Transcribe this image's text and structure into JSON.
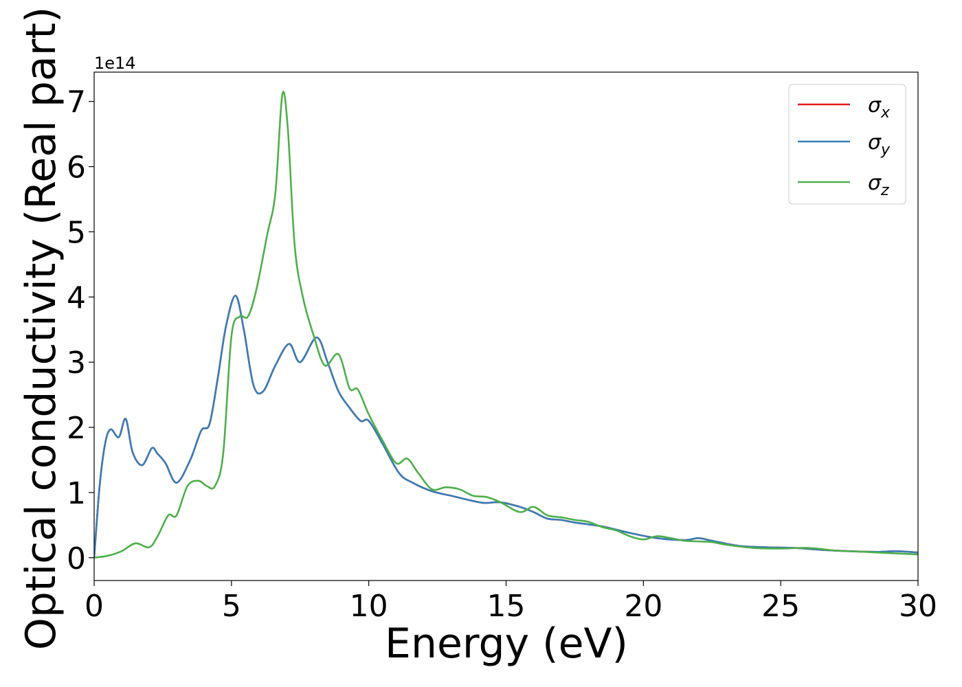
{
  "chart_data": {
    "type": "line",
    "xlabel": "Energy (eV)",
    "ylabel": "Optical conductivity (Real part)",
    "y_offset_label": "1e14",
    "y_multiplier": 100000000000000.0,
    "xlim": [
      0,
      30
    ],
    "ylim": [
      -0.35,
      7.45
    ],
    "xticks": [
      0,
      5,
      10,
      15,
      20,
      25,
      30
    ],
    "yticks": [
      0,
      1,
      2,
      3,
      4,
      5,
      6,
      7
    ],
    "grid": false,
    "legend_position": "top-right",
    "series": [
      {
        "name": "σ",
        "subscript": "x",
        "color": "#e41a1c",
        "x": [
          0,
          0.2,
          0.4,
          0.6,
          0.9,
          1.15,
          1.4,
          1.75,
          2.1,
          2.3,
          2.6,
          3.0,
          3.5,
          3.9,
          4.2,
          4.5,
          4.8,
          5.15,
          5.45,
          5.8,
          6.15,
          6.6,
          7.1,
          7.5,
          8.1,
          8.5,
          8.9,
          9.3,
          9.7,
          10.0,
          10.5,
          11.1,
          11.6,
          12.3,
          13.0,
          13.7,
          14.2,
          14.8,
          15.5,
          16.0,
          16.5,
          17.0,
          17.5,
          18.5,
          19.5,
          20.5,
          21.5,
          22.0,
          22.5,
          23.5,
          24.5,
          25.5,
          26.5,
          27.5,
          28.5,
          29.2,
          30.0
        ],
        "y": [
          0,
          1.1,
          1.75,
          1.97,
          1.85,
          2.13,
          1.62,
          1.42,
          1.68,
          1.6,
          1.45,
          1.15,
          1.5,
          1.95,
          2.05,
          2.75,
          3.55,
          4.02,
          3.5,
          2.65,
          2.55,
          2.95,
          3.28,
          3.0,
          3.38,
          3.0,
          2.55,
          2.3,
          2.1,
          2.1,
          1.75,
          1.3,
          1.15,
          1.02,
          0.95,
          0.88,
          0.84,
          0.85,
          0.78,
          0.7,
          0.6,
          0.58,
          0.54,
          0.48,
          0.38,
          0.3,
          0.27,
          0.3,
          0.26,
          0.18,
          0.16,
          0.15,
          0.12,
          0.1,
          0.09,
          0.1,
          0.08
        ]
      },
      {
        "name": "σ",
        "subscript": "y",
        "color": "#377eb8",
        "x": [
          0,
          0.2,
          0.4,
          0.6,
          0.9,
          1.15,
          1.4,
          1.75,
          2.1,
          2.3,
          2.6,
          3.0,
          3.5,
          3.9,
          4.2,
          4.5,
          4.8,
          5.15,
          5.45,
          5.8,
          6.15,
          6.6,
          7.1,
          7.5,
          8.1,
          8.5,
          8.9,
          9.3,
          9.7,
          10.0,
          10.5,
          11.1,
          11.6,
          12.3,
          13.0,
          13.7,
          14.2,
          14.8,
          15.5,
          16.0,
          16.5,
          17.0,
          17.5,
          18.5,
          19.5,
          20.5,
          21.5,
          22.0,
          22.5,
          23.5,
          24.5,
          25.5,
          26.5,
          27.5,
          28.5,
          29.2,
          30.0
        ],
        "y": [
          0,
          1.1,
          1.75,
          1.97,
          1.85,
          2.13,
          1.62,
          1.42,
          1.68,
          1.6,
          1.45,
          1.15,
          1.5,
          1.95,
          2.05,
          2.75,
          3.55,
          4.02,
          3.5,
          2.65,
          2.55,
          2.95,
          3.28,
          3.0,
          3.38,
          3.0,
          2.55,
          2.3,
          2.1,
          2.1,
          1.75,
          1.3,
          1.15,
          1.02,
          0.95,
          0.88,
          0.84,
          0.85,
          0.78,
          0.7,
          0.6,
          0.58,
          0.54,
          0.48,
          0.38,
          0.3,
          0.27,
          0.3,
          0.26,
          0.18,
          0.16,
          0.15,
          0.12,
          0.1,
          0.09,
          0.1,
          0.08
        ]
      },
      {
        "name": "σ",
        "subscript": "z",
        "color": "#4daf4a",
        "x": [
          0,
          0.5,
          1.0,
          1.5,
          2.0,
          2.3,
          2.7,
          3.0,
          3.4,
          3.8,
          4.1,
          4.4,
          4.7,
          5.0,
          5.3,
          5.6,
          5.9,
          6.3,
          6.6,
          6.85,
          7.05,
          7.3,
          7.6,
          8.0,
          8.4,
          8.9,
          9.3,
          9.6,
          10.0,
          10.5,
          11.0,
          11.4,
          11.8,
          12.3,
          12.8,
          13.3,
          13.8,
          14.3,
          14.8,
          15.5,
          16.0,
          16.5,
          17.0,
          17.5,
          18.0,
          18.5,
          19.0,
          19.5,
          20.0,
          20.5,
          21.0,
          21.5,
          22.0,
          22.5,
          23.0,
          24.0,
          25.0,
          26.0,
          27.0,
          28.0,
          29.0,
          30.0
        ],
        "y": [
          0,
          0.03,
          0.1,
          0.22,
          0.16,
          0.32,
          0.65,
          0.65,
          1.1,
          1.18,
          1.1,
          1.1,
          1.6,
          3.4,
          3.7,
          3.7,
          4.1,
          4.95,
          5.6,
          7.1,
          6.6,
          4.8,
          4.0,
          3.4,
          2.95,
          3.12,
          2.6,
          2.58,
          2.2,
          1.8,
          1.45,
          1.52,
          1.3,
          1.05,
          1.08,
          1.05,
          0.95,
          0.93,
          0.85,
          0.7,
          0.78,
          0.65,
          0.62,
          0.58,
          0.55,
          0.47,
          0.42,
          0.33,
          0.28,
          0.33,
          0.3,
          0.26,
          0.25,
          0.24,
          0.2,
          0.15,
          0.14,
          0.15,
          0.11,
          0.09,
          0.07,
          0.05
        ]
      }
    ]
  }
}
